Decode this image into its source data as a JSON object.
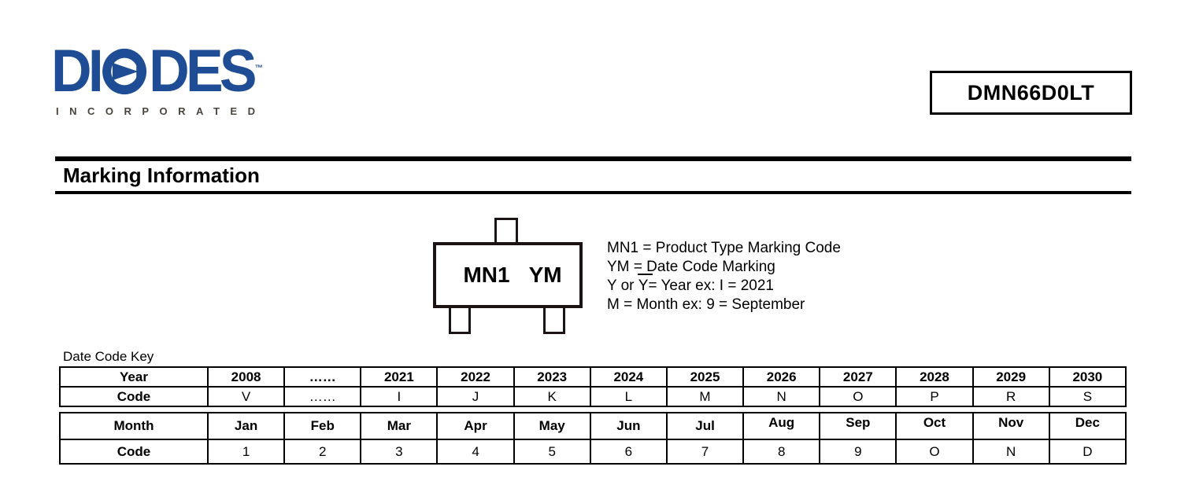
{
  "logo": {
    "brand_prefix": "DI",
    "brand_suffix": "DES",
    "tm": "™",
    "subtitle": "INCORPORATED",
    "blue": "#1e4c95",
    "subtitle_color": "#4a443c"
  },
  "part_box": {
    "part_number": "DMN66D0LT"
  },
  "section": {
    "title": "Marking Information"
  },
  "package_diagram": {
    "marking_left": "MN1",
    "marking_right": "YM"
  },
  "legend": {
    "line1": "MN1 = Product Type Marking Code",
    "line2": "YM = Date Code Marking",
    "line3_prefix": "Y or ",
    "line3_overbar": "Y",
    "line3_suffix": "= Year ex: I = 2021",
    "line4": "M = Month ex: 9 = September"
  },
  "date_code_key": {
    "label": "Date Code Key",
    "year_table": {
      "rows": [
        [
          "Year",
          "2008",
          "……",
          "2021",
          "2022",
          "2023",
          "2024",
          "2025",
          "2026",
          "2027",
          "2028",
          "2029",
          "2030"
        ],
        [
          "Code",
          "V",
          "……",
          "I",
          "J",
          "K",
          "L",
          "M",
          "N",
          "O",
          "P",
          "R",
          "S"
        ]
      ]
    },
    "month_table": {
      "rows": [
        [
          "Month",
          "Jan",
          "Feb",
          "Mar",
          "Apr",
          "May",
          "Jun",
          "Jul",
          "Aug",
          "Sep",
          "Oct",
          "Nov",
          "Dec"
        ],
        [
          "Code",
          "1",
          "2",
          "3",
          "4",
          "5",
          "6",
          "7",
          "8",
          "9",
          "O",
          "N",
          "D"
        ]
      ],
      "raised_header_from": 8
    }
  }
}
